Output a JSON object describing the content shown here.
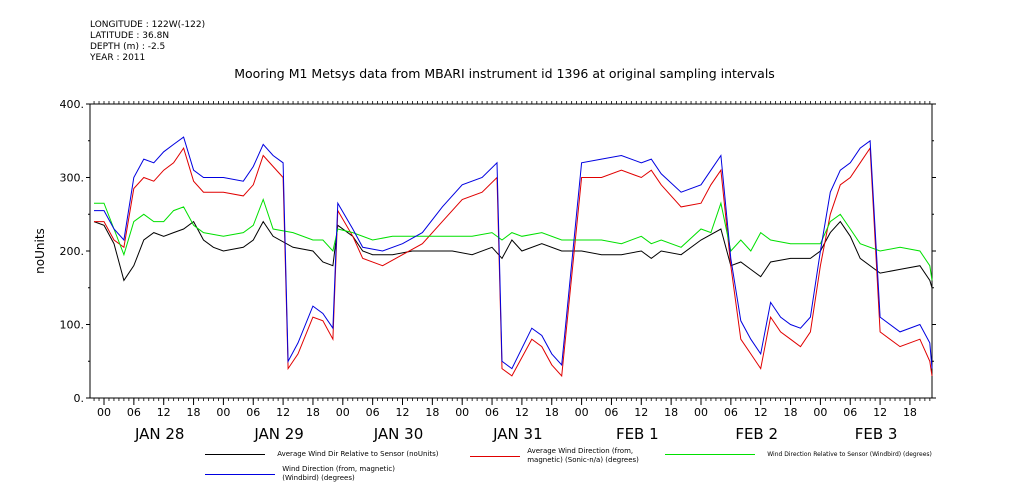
{
  "meta": {
    "lines": [
      "LONGITUDE : 122W(-122)",
      "LATITUDE : 36.8N",
      "DEPTH (m) : -2.5",
      "YEAR : 2011"
    ]
  },
  "colors": {
    "black": "#000000",
    "red": "#e00000",
    "green": "#00e000",
    "blue": "#0000e0"
  },
  "chart_data": {
    "type": "line",
    "title": "Mooring M1 Metsys data from MBARI instrument id 1396 at original sampling intervals",
    "ylabel": "noUnits",
    "ylim": [
      0,
      400
    ],
    "yticks": [
      0,
      100,
      200,
      300,
      400
    ],
    "ytick_labels": [
      "0.",
      "100.",
      "200.",
      "300.",
      "400."
    ],
    "xlim_hours": [
      0,
      168
    ],
    "xticks": [
      {
        "h": 0,
        "label": "00"
      },
      {
        "h": 6,
        "label": "06"
      },
      {
        "h": 12,
        "label": "12"
      },
      {
        "h": 18,
        "label": "18"
      },
      {
        "h": 24,
        "label": "00"
      },
      {
        "h": 30,
        "label": "06"
      },
      {
        "h": 36,
        "label": "12"
      },
      {
        "h": 42,
        "label": "18"
      },
      {
        "h": 48,
        "label": "00"
      },
      {
        "h": 54,
        "label": "06"
      },
      {
        "h": 60,
        "label": "12"
      },
      {
        "h": 66,
        "label": "18"
      },
      {
        "h": 72,
        "label": "00"
      },
      {
        "h": 78,
        "label": "06"
      },
      {
        "h": 84,
        "label": "12"
      },
      {
        "h": 90,
        "label": "18"
      },
      {
        "h": 96,
        "label": "00"
      },
      {
        "h": 102,
        "label": "06"
      },
      {
        "h": 108,
        "label": "12"
      },
      {
        "h": 114,
        "label": "18"
      },
      {
        "h": 120,
        "label": "00"
      },
      {
        "h": 126,
        "label": "06"
      },
      {
        "h": 132,
        "label": "12"
      },
      {
        "h": 138,
        "label": "18"
      },
      {
        "h": 144,
        "label": "00"
      },
      {
        "h": 150,
        "label": "06"
      },
      {
        "h": 156,
        "label": "12"
      },
      {
        "h": 162,
        "label": "18"
      }
    ],
    "day_labels": [
      {
        "h": 12,
        "label": "JAN 28"
      },
      {
        "h": 36,
        "label": "JAN 29"
      },
      {
        "h": 60,
        "label": "JAN 30"
      },
      {
        "h": 84,
        "label": "JAN 31"
      },
      {
        "h": 108,
        "label": "FEB  1"
      },
      {
        "h": 132,
        "label": "FEB  2"
      },
      {
        "h": 156,
        "label": "FEB  3"
      }
    ],
    "series": [
      {
        "name": "Average Wind Dir Relative to Sensor (noUnits)",
        "color": "#000000",
        "points": [
          [
            -2,
            240
          ],
          [
            0,
            235
          ],
          [
            2,
            210
          ],
          [
            4,
            160
          ],
          [
            6,
            180
          ],
          [
            8,
            215
          ],
          [
            10,
            225
          ],
          [
            12,
            220
          ],
          [
            14,
            225
          ],
          [
            16,
            230
          ],
          [
            18,
            240
          ],
          [
            20,
            215
          ],
          [
            22,
            205
          ],
          [
            24,
            200
          ],
          [
            28,
            205
          ],
          [
            30,
            215
          ],
          [
            32,
            240
          ],
          [
            34,
            220
          ],
          [
            38,
            205
          ],
          [
            42,
            200
          ],
          [
            44,
            185
          ],
          [
            46,
            180
          ],
          [
            47,
            235
          ],
          [
            50,
            220
          ],
          [
            52,
            200
          ],
          [
            54,
            195
          ],
          [
            58,
            195
          ],
          [
            62,
            200
          ],
          [
            66,
            200
          ],
          [
            70,
            200
          ],
          [
            74,
            195
          ],
          [
            78,
            205
          ],
          [
            80,
            190
          ],
          [
            82,
            215
          ],
          [
            84,
            200
          ],
          [
            88,
            210
          ],
          [
            92,
            200
          ],
          [
            96,
            200
          ],
          [
            100,
            195
          ],
          [
            104,
            195
          ],
          [
            108,
            200
          ],
          [
            110,
            190
          ],
          [
            112,
            200
          ],
          [
            116,
            195
          ],
          [
            120,
            215
          ],
          [
            124,
            230
          ],
          [
            126,
            180
          ],
          [
            128,
            185
          ],
          [
            130,
            175
          ],
          [
            132,
            165
          ],
          [
            134,
            185
          ],
          [
            138,
            190
          ],
          [
            142,
            190
          ],
          [
            144,
            200
          ],
          [
            146,
            225
          ],
          [
            148,
            240
          ],
          [
            150,
            220
          ],
          [
            152,
            190
          ],
          [
            156,
            170
          ],
          [
            160,
            175
          ],
          [
            164,
            180
          ],
          [
            166,
            160
          ],
          [
            168,
            150
          ]
        ]
      },
      {
        "name": "Average Wind Direction (from, magnetic) (Sonic-n/a) (degrees)",
        "color": "#e00000",
        "points": [
          [
            -2,
            240
          ],
          [
            0,
            240
          ],
          [
            2,
            215
          ],
          [
            4,
            205
          ],
          [
            6,
            285
          ],
          [
            8,
            300
          ],
          [
            10,
            295
          ],
          [
            12,
            310
          ],
          [
            14,
            320
          ],
          [
            16,
            340
          ],
          [
            18,
            295
          ],
          [
            20,
            280
          ],
          [
            24,
            280
          ],
          [
            28,
            275
          ],
          [
            30,
            290
          ],
          [
            32,
            330
          ],
          [
            34,
            315
          ],
          [
            36,
            300
          ],
          [
            37,
            40
          ],
          [
            39,
            60
          ],
          [
            42,
            110
          ],
          [
            44,
            105
          ],
          [
            46,
            80
          ],
          [
            47,
            255
          ],
          [
            50,
            220
          ],
          [
            52,
            190
          ],
          [
            56,
            180
          ],
          [
            60,
            195
          ],
          [
            64,
            210
          ],
          [
            68,
            240
          ],
          [
            72,
            270
          ],
          [
            76,
            280
          ],
          [
            79,
            300
          ],
          [
            80,
            40
          ],
          [
            82,
            30
          ],
          [
            86,
            80
          ],
          [
            88,
            70
          ],
          [
            90,
            45
          ],
          [
            92,
            30
          ],
          [
            96,
            300
          ],
          [
            100,
            300
          ],
          [
            104,
            310
          ],
          [
            108,
            300
          ],
          [
            110,
            310
          ],
          [
            112,
            290
          ],
          [
            116,
            260
          ],
          [
            120,
            265
          ],
          [
            122,
            290
          ],
          [
            124,
            310
          ],
          [
            126,
            180
          ],
          [
            128,
            80
          ],
          [
            130,
            60
          ],
          [
            132,
            40
          ],
          [
            134,
            110
          ],
          [
            136,
            90
          ],
          [
            138,
            80
          ],
          [
            140,
            70
          ],
          [
            142,
            90
          ],
          [
            144,
            180
          ],
          [
            146,
            250
          ],
          [
            148,
            290
          ],
          [
            150,
            300
          ],
          [
            152,
            320
          ],
          [
            154,
            340
          ],
          [
            156,
            90
          ],
          [
            160,
            70
          ],
          [
            164,
            80
          ],
          [
            166,
            50
          ],
          [
            168,
            30
          ]
        ]
      },
      {
        "name": "Wind Direction Relative to Sensor (Windbird) (degrees)",
        "color": "#00e000",
        "points": [
          [
            -2,
            265
          ],
          [
            0,
            265
          ],
          [
            2,
            230
          ],
          [
            4,
            195
          ],
          [
            6,
            240
          ],
          [
            8,
            250
          ],
          [
            10,
            240
          ],
          [
            12,
            240
          ],
          [
            14,
            255
          ],
          [
            16,
            260
          ],
          [
            18,
            235
          ],
          [
            20,
            225
          ],
          [
            24,
            220
          ],
          [
            28,
            225
          ],
          [
            30,
            235
          ],
          [
            32,
            270
          ],
          [
            34,
            230
          ],
          [
            38,
            225
          ],
          [
            42,
            215
          ],
          [
            44,
            215
          ],
          [
            46,
            200
          ],
          [
            47,
            230
          ],
          [
            50,
            225
          ],
          [
            54,
            215
          ],
          [
            58,
            220
          ],
          [
            62,
            220
          ],
          [
            66,
            220
          ],
          [
            70,
            220
          ],
          [
            74,
            220
          ],
          [
            78,
            225
          ],
          [
            80,
            215
          ],
          [
            82,
            225
          ],
          [
            84,
            220
          ],
          [
            88,
            225
          ],
          [
            92,
            215
          ],
          [
            96,
            215
          ],
          [
            100,
            215
          ],
          [
            104,
            210
          ],
          [
            108,
            220
          ],
          [
            110,
            210
          ],
          [
            112,
            215
          ],
          [
            116,
            205
          ],
          [
            120,
            230
          ],
          [
            122,
            225
          ],
          [
            124,
            265
          ],
          [
            126,
            200
          ],
          [
            128,
            215
          ],
          [
            130,
            200
          ],
          [
            132,
            225
          ],
          [
            134,
            215
          ],
          [
            138,
            210
          ],
          [
            142,
            210
          ],
          [
            144,
            210
          ],
          [
            146,
            240
          ],
          [
            148,
            250
          ],
          [
            150,
            230
          ],
          [
            152,
            210
          ],
          [
            156,
            200
          ],
          [
            160,
            205
          ],
          [
            164,
            200
          ],
          [
            166,
            180
          ],
          [
            168,
            160
          ]
        ]
      },
      {
        "name": "Wind Direction (from, magnetic) (Windbird) (degrees)",
        "color": "#0000e0",
        "points": [
          [
            -2,
            255
          ],
          [
            0,
            255
          ],
          [
            2,
            230
          ],
          [
            4,
            215
          ],
          [
            6,
            300
          ],
          [
            8,
            325
          ],
          [
            10,
            320
          ],
          [
            12,
            335
          ],
          [
            14,
            345
          ],
          [
            16,
            355
          ],
          [
            18,
            310
          ],
          [
            20,
            300
          ],
          [
            24,
            300
          ],
          [
            28,
            295
          ],
          [
            30,
            315
          ],
          [
            32,
            345
          ],
          [
            34,
            330
          ],
          [
            36,
            320
          ],
          [
            37,
            50
          ],
          [
            39,
            75
          ],
          [
            42,
            125
          ],
          [
            44,
            115
          ],
          [
            46,
            95
          ],
          [
            47,
            265
          ],
          [
            50,
            230
          ],
          [
            52,
            205
          ],
          [
            56,
            200
          ],
          [
            60,
            210
          ],
          [
            64,
            225
          ],
          [
            68,
            260
          ],
          [
            72,
            290
          ],
          [
            76,
            300
          ],
          [
            79,
            320
          ],
          [
            80,
            50
          ],
          [
            82,
            40
          ],
          [
            86,
            95
          ],
          [
            88,
            85
          ],
          [
            90,
            60
          ],
          [
            92,
            45
          ],
          [
            96,
            320
          ],
          [
            100,
            325
          ],
          [
            104,
            330
          ],
          [
            108,
            320
          ],
          [
            110,
            325
          ],
          [
            112,
            305
          ],
          [
            116,
            280
          ],
          [
            120,
            290
          ],
          [
            122,
            310
          ],
          [
            124,
            330
          ],
          [
            126,
            190
          ],
          [
            128,
            105
          ],
          [
            130,
            80
          ],
          [
            132,
            60
          ],
          [
            134,
            130
          ],
          [
            136,
            110
          ],
          [
            138,
            100
          ],
          [
            140,
            95
          ],
          [
            142,
            110
          ],
          [
            144,
            200
          ],
          [
            146,
            280
          ],
          [
            148,
            310
          ],
          [
            150,
            320
          ],
          [
            152,
            340
          ],
          [
            154,
            350
          ],
          [
            156,
            110
          ],
          [
            160,
            90
          ],
          [
            164,
            100
          ],
          [
            166,
            75
          ],
          [
            168,
            40
          ]
        ]
      }
    ]
  },
  "legend": [
    {
      "label": "Average Wind Dir Relative to Sensor (noUnits)",
      "color": "#000000"
    },
    {
      "label": "Average Wind Direction (from, magnetic) (Sonic-n/a) (degrees)",
      "color": "#e00000"
    },
    {
      "label": "Wind Direction Relative to Sensor (Windbird) (degrees)",
      "color": "#00e000"
    },
    {
      "label": "Wind Direction (from, magnetic) (Windbird) (degrees)",
      "color": "#0000e0"
    }
  ]
}
